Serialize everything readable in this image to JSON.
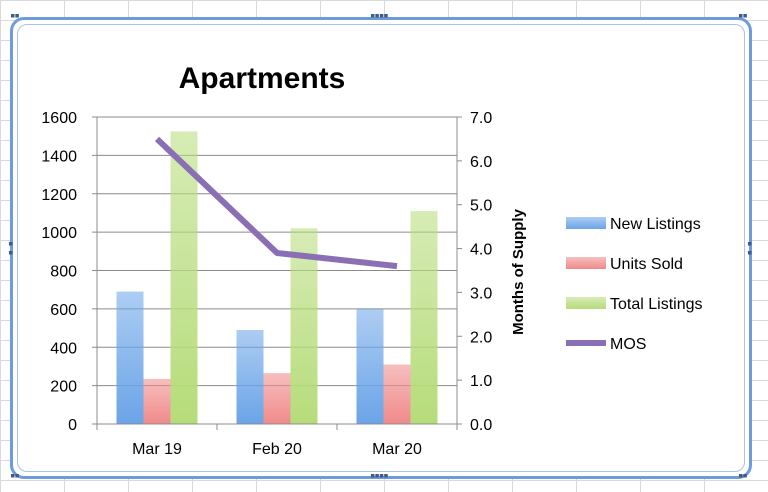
{
  "chart_data": {
    "type": "bar",
    "title": "Apartments",
    "categories": [
      "Mar 19",
      "Feb 20",
      "Mar 20"
    ],
    "series": [
      {
        "name": "New Listings",
        "values": [
          690,
          490,
          600
        ],
        "axis": "left",
        "color": "#6aa4e8"
      },
      {
        "name": "Units Sold",
        "values": [
          235,
          265,
          310
        ],
        "axis": "left",
        "color": "#f08a8a"
      },
      {
        "name": "Total Listings",
        "values": [
          1525,
          1020,
          1110
        ],
        "axis": "left",
        "color": "#b6dc7a"
      },
      {
        "name": "MOS",
        "type": "line",
        "values": [
          6.5,
          3.9,
          3.6
        ],
        "axis": "right",
        "color": "#8a6fb4"
      }
    ],
    "ylim": [
      0,
      1600
    ],
    "yticks": [
      "0",
      "200",
      "400",
      "600",
      "800",
      "1000",
      "1200",
      "1400",
      "1600"
    ],
    "y2lim": [
      0,
      7
    ],
    "y2ticks": [
      "0.0",
      "1.0",
      "2.0",
      "3.0",
      "4.0",
      "5.0",
      "6.0",
      "7.0"
    ],
    "y2label": "Months of Supply",
    "grid": true,
    "legend": "right"
  }
}
